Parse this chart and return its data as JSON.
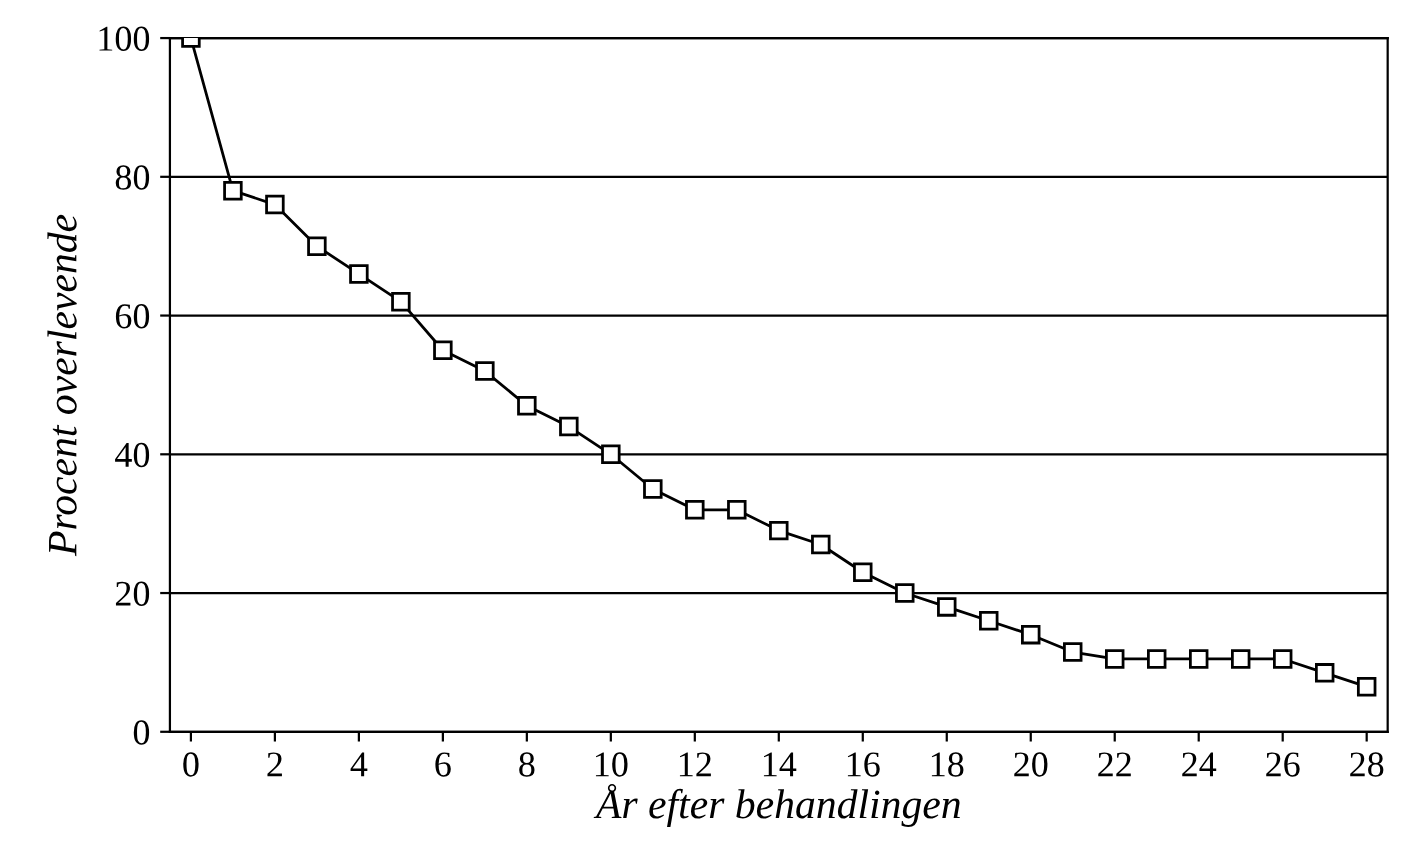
{
  "chart_data": {
    "type": "line",
    "xlabel": "År efter behandlingen",
    "ylabel": "Procent overlevende",
    "x": [
      0,
      1,
      2,
      3,
      4,
      5,
      6,
      7,
      8,
      9,
      10,
      11,
      12,
      13,
      14,
      15,
      16,
      17,
      18,
      19,
      20,
      21,
      22,
      23,
      24,
      25,
      26,
      27,
      28
    ],
    "series": [
      {
        "color": "#000000",
        "values": [
          100,
          78,
          76,
          70,
          66,
          62,
          55,
          52,
          47,
          44,
          40,
          35,
          32,
          32,
          29,
          27,
          23,
          20,
          18,
          16,
          14,
          11.5,
          10.5,
          10.5,
          10.5,
          10.5,
          10.5,
          8.5,
          6.5
        ]
      }
    ],
    "xlim": [
      -0.5,
      28.5
    ],
    "xticks": [
      0,
      2,
      4,
      6,
      8,
      10,
      12,
      14,
      16,
      18,
      20,
      22,
      24,
      26,
      28
    ],
    "ylim": [
      0,
      100
    ],
    "yticks": [
      0,
      20,
      40,
      60,
      80,
      100
    ],
    "grid": "y",
    "marker": "square",
    "line_style": "solid"
  }
}
